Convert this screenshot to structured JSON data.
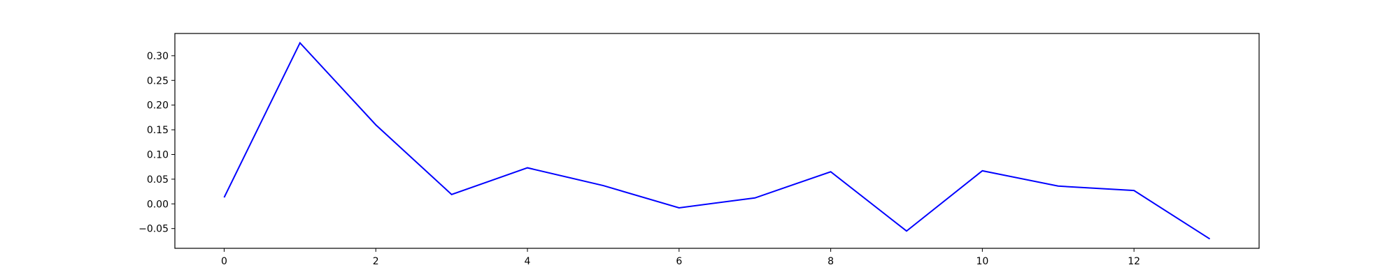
{
  "chart_data": {
    "type": "line",
    "title": "",
    "xlabel": "",
    "ylabel": "",
    "xlim": [
      -0.65,
      13.65
    ],
    "ylim": [
      -0.09,
      0.345
    ],
    "x_ticks": [
      0,
      2,
      4,
      6,
      8,
      10,
      12
    ],
    "x_tick_labels": [
      "0",
      "2",
      "4",
      "6",
      "8",
      "10",
      "12"
    ],
    "y_ticks": [
      -0.05,
      0.0,
      0.05,
      0.1,
      0.15,
      0.2,
      0.25,
      0.3
    ],
    "y_tick_labels": [
      "−0.05",
      "0.00",
      "0.05",
      "0.10",
      "0.15",
      "0.20",
      "0.25",
      "0.30"
    ],
    "grid": false,
    "legend": "none",
    "series": [
      {
        "color": "#0000ff",
        "x": [
          0,
          1,
          2,
          3,
          4,
          5,
          6,
          7,
          8,
          9,
          10,
          11,
          12,
          13
        ],
        "values": [
          0.013,
          0.326,
          0.16,
          0.019,
          0.073,
          0.037,
          -0.008,
          0.012,
          0.065,
          -0.055,
          0.067,
          0.036,
          0.027,
          -0.071
        ]
      }
    ]
  }
}
